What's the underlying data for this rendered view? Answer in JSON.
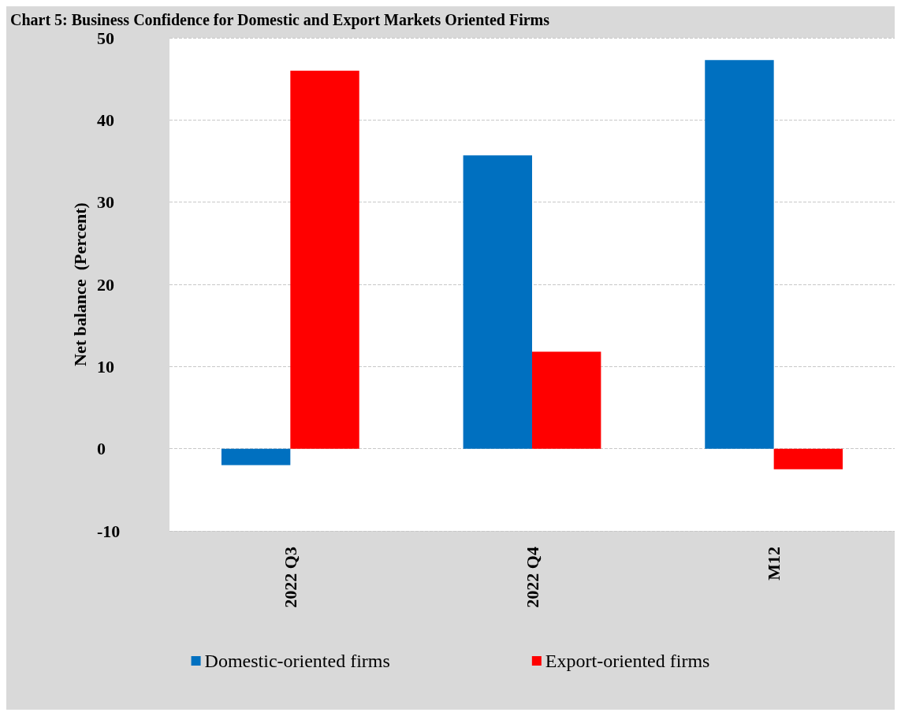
{
  "chart_data": {
    "type": "bar",
    "title": "Chart 5: Business Confidence for Domestic and Export Markets Oriented Firms",
    "ylabel": "Net balance  (Percent)",
    "categories": [
      "2022 Q3",
      "2022 Q4",
      "M12"
    ],
    "series": [
      {
        "name": "Domestic-oriented firms",
        "color": "#0070c0",
        "values": [
          -2.0,
          35.7,
          47.3
        ]
      },
      {
        "name": "Export-oriented firms",
        "color": "#ff0000",
        "values": [
          46.0,
          11.8,
          -2.5
        ]
      }
    ],
    "ylim": [
      -10,
      50
    ],
    "yticks": [
      -10,
      0,
      10,
      20,
      30,
      40,
      50
    ],
    "grid": "y",
    "legend": "bottom"
  }
}
